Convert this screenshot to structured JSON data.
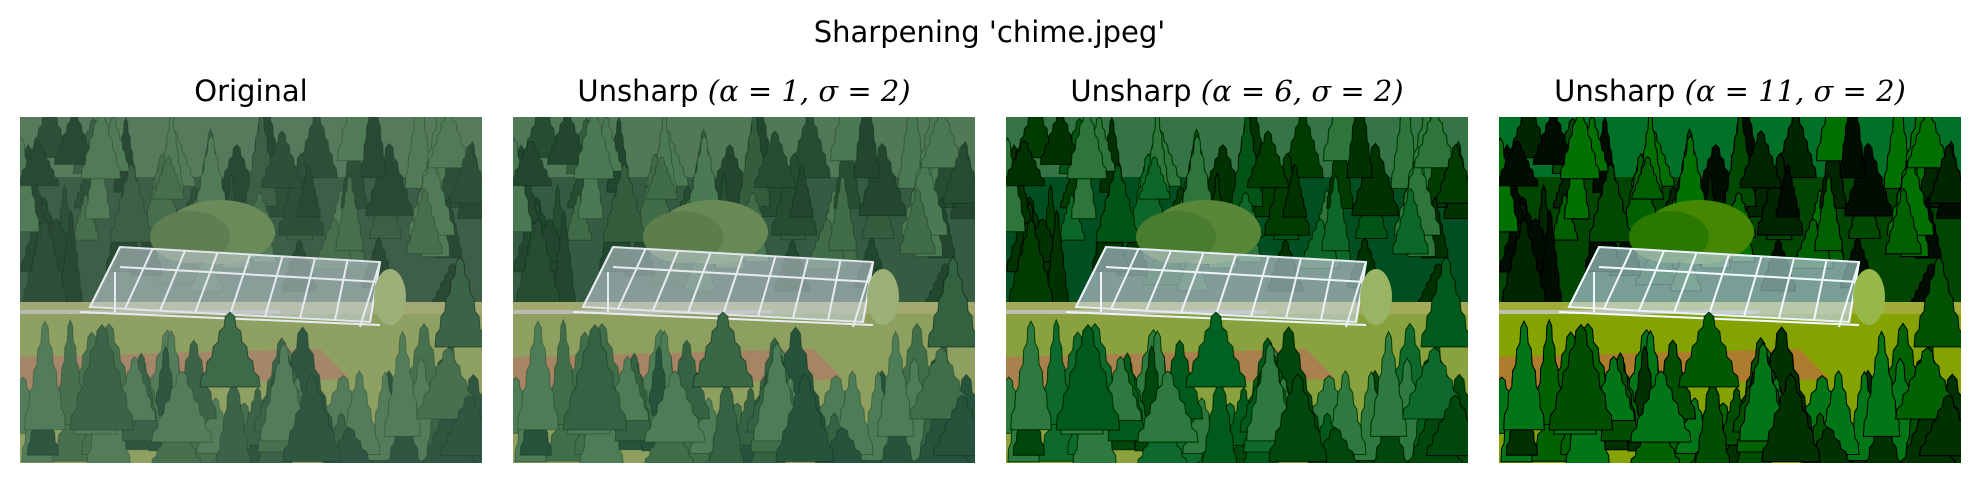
{
  "figure": {
    "suptitle": "Sharpening 'chime.jpeg'",
    "panels": [
      {
        "title_text": "Original",
        "title_math": "",
        "title_suffix": "",
        "sharpen_alpha": 0
      },
      {
        "title_text": "Unsharp ",
        "title_math": "(α = 1, σ = 2)",
        "title_suffix": "",
        "sharpen_alpha": 1
      },
      {
        "title_text": "Unsharp ",
        "title_math": "(α = 6, σ = 2)",
        "title_suffix": "",
        "sharpen_alpha": 6
      },
      {
        "title_text": "Unsharp ",
        "title_math": "(α = 11, σ = 2)",
        "title_suffix": "",
        "sharpen_alpha": 11
      }
    ]
  }
}
